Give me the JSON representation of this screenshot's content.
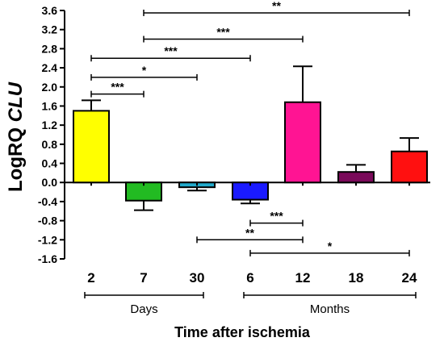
{
  "chart_data": {
    "type": "bar",
    "categories": [
      "2",
      "7",
      "30",
      "6",
      "12",
      "18",
      "24"
    ],
    "values": [
      1.5,
      -0.38,
      -0.1,
      -0.36,
      1.68,
      0.22,
      0.65
    ],
    "errors": [
      0.22,
      0.2,
      0.07,
      0.08,
      0.75,
      0.15,
      0.28
    ],
    "colors": [
      "#ffff00",
      "#22bb22",
      "#22aacc",
      "#1a1aff",
      "#ff1493",
      "#7a0a5a",
      "#ff1010"
    ],
    "ylim": [
      -1.6,
      3.6
    ],
    "yticks": [
      "-1.6",
      "-1.2",
      "-0.8",
      "-0.4",
      "0.0",
      "0.4",
      "0.8",
      "1.2",
      "1.6",
      "2.0",
      "2.4",
      "2.8",
      "3.2",
      "3.6"
    ],
    "ylabel_prefix": "LogRQ ",
    "ylabel_gene": "CLU",
    "xlabel": "Time after ischemia",
    "groups": [
      {
        "label": "Days",
        "from": 0,
        "to": 2
      },
      {
        "label": "Months",
        "from": 3,
        "to": 6
      }
    ],
    "significance": [
      {
        "from": 1,
        "to": 6,
        "y": 3.55,
        "label": "**"
      },
      {
        "from": 1,
        "to": 4,
        "y": 3.0,
        "label": "***"
      },
      {
        "from": 0,
        "to": 3,
        "y": 2.6,
        "label": "***"
      },
      {
        "from": 0,
        "to": 2,
        "y": 2.2,
        "label": "*"
      },
      {
        "from": 0,
        "to": 1,
        "y": 1.85,
        "label": "***"
      },
      {
        "from": 3,
        "to": 4,
        "y": -0.85,
        "label": "***"
      },
      {
        "from": 2,
        "to": 4,
        "y": -1.2,
        "label": "**"
      },
      {
        "from": 3,
        "to": 6,
        "y": -1.48,
        "label": "*"
      }
    ]
  }
}
